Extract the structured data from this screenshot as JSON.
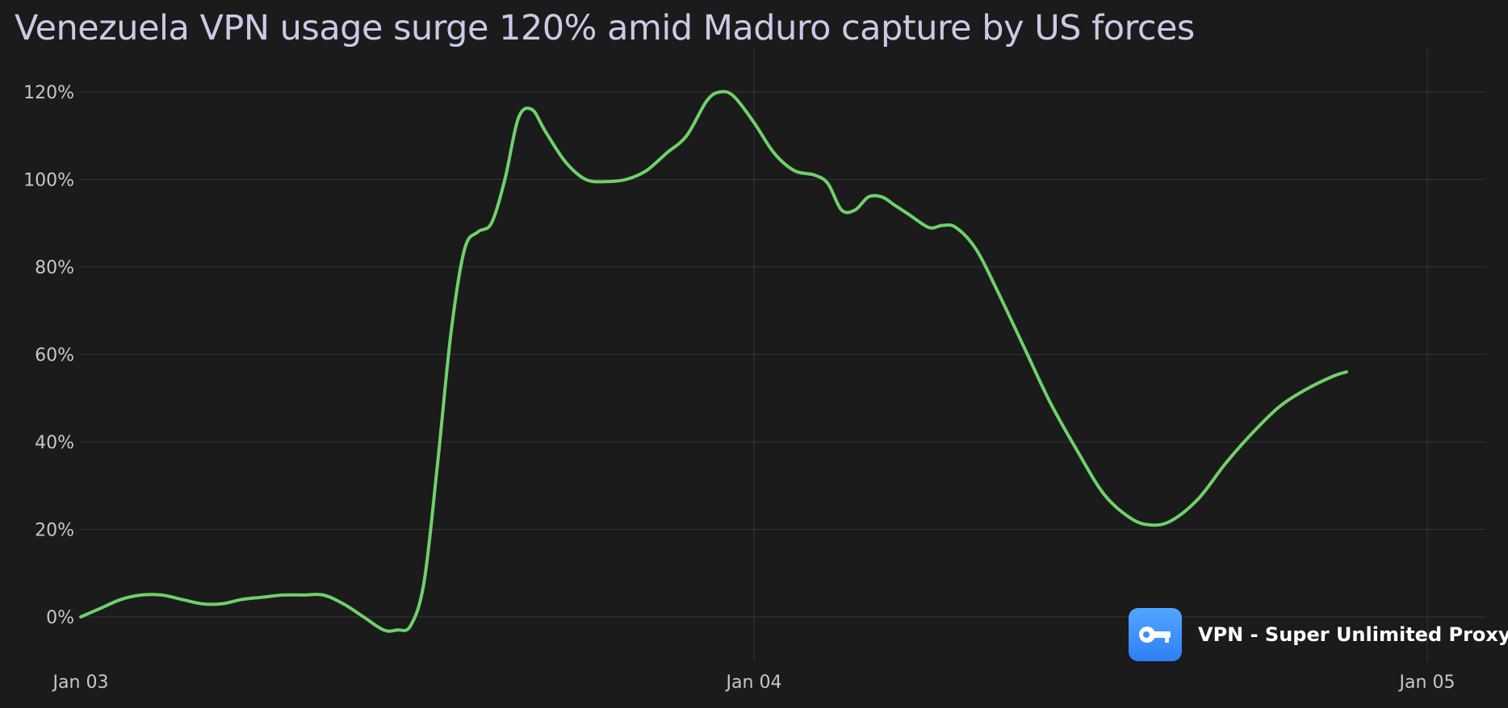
{
  "chart_data": {
    "type": "line",
    "title": "Venezuela VPN usage surge 120% amid Maduro capture by US forces",
    "xlabel": "",
    "ylabel": "",
    "x_ticks": [
      "Jan 03",
      "Jan 04",
      "Jan 05"
    ],
    "y_ticks": [
      "0%",
      "20%",
      "40%",
      "60%",
      "80%",
      "100%",
      "120%"
    ],
    "ylim": [
      -10,
      125
    ],
    "grid": true,
    "line_color": "#6fd16a",
    "x_unit": "days since Jan 03",
    "series": [
      {
        "name": "",
        "points": [
          [
            0.0,
            0
          ],
          [
            0.03,
            2
          ],
          [
            0.06,
            4
          ],
          [
            0.09,
            5
          ],
          [
            0.12,
            5
          ],
          [
            0.15,
            4
          ],
          [
            0.18,
            3
          ],
          [
            0.21,
            3
          ],
          [
            0.24,
            4
          ],
          [
            0.27,
            4.5
          ],
          [
            0.3,
            5
          ],
          [
            0.33,
            5
          ],
          [
            0.36,
            5
          ],
          [
            0.39,
            3
          ],
          [
            0.42,
            0
          ],
          [
            0.45,
            -3
          ],
          [
            0.47,
            -3
          ],
          [
            0.49,
            -2
          ],
          [
            0.51,
            8
          ],
          [
            0.53,
            35
          ],
          [
            0.55,
            65
          ],
          [
            0.57,
            84
          ],
          [
            0.59,
            88
          ],
          [
            0.61,
            90
          ],
          [
            0.63,
            100
          ],
          [
            0.65,
            114
          ],
          [
            0.67,
            116
          ],
          [
            0.69,
            111
          ],
          [
            0.72,
            104
          ],
          [
            0.75,
            100
          ],
          [
            0.78,
            99.5
          ],
          [
            0.81,
            100
          ],
          [
            0.84,
            102
          ],
          [
            0.87,
            106
          ],
          [
            0.9,
            110
          ],
          [
            0.93,
            118
          ],
          [
            0.95,
            120
          ],
          [
            0.97,
            119
          ],
          [
            1.0,
            113
          ],
          [
            1.03,
            106
          ],
          [
            1.06,
            102
          ],
          [
            1.09,
            101
          ],
          [
            1.11,
            99
          ],
          [
            1.13,
            93
          ],
          [
            1.15,
            93
          ],
          [
            1.17,
            96
          ],
          [
            1.19,
            96
          ],
          [
            1.21,
            94
          ],
          [
            1.23,
            92
          ],
          [
            1.26,
            89
          ],
          [
            1.28,
            89.5
          ],
          [
            1.3,
            89
          ],
          [
            1.33,
            84
          ],
          [
            1.36,
            75
          ],
          [
            1.4,
            62
          ],
          [
            1.44,
            49
          ],
          [
            1.48,
            38
          ],
          [
            1.52,
            28
          ],
          [
            1.56,
            22.5
          ],
          [
            1.59,
            21
          ],
          [
            1.62,
            22
          ],
          [
            1.66,
            27
          ],
          [
            1.7,
            35
          ],
          [
            1.74,
            42
          ],
          [
            1.78,
            48
          ],
          [
            1.82,
            52
          ],
          [
            1.86,
            55
          ],
          [
            1.88,
            56
          ]
        ]
      }
    ]
  },
  "watermark": {
    "icon": "key-icon",
    "label": "VPN - Super Unlimited Proxy",
    "color": "#3d8ff8"
  }
}
